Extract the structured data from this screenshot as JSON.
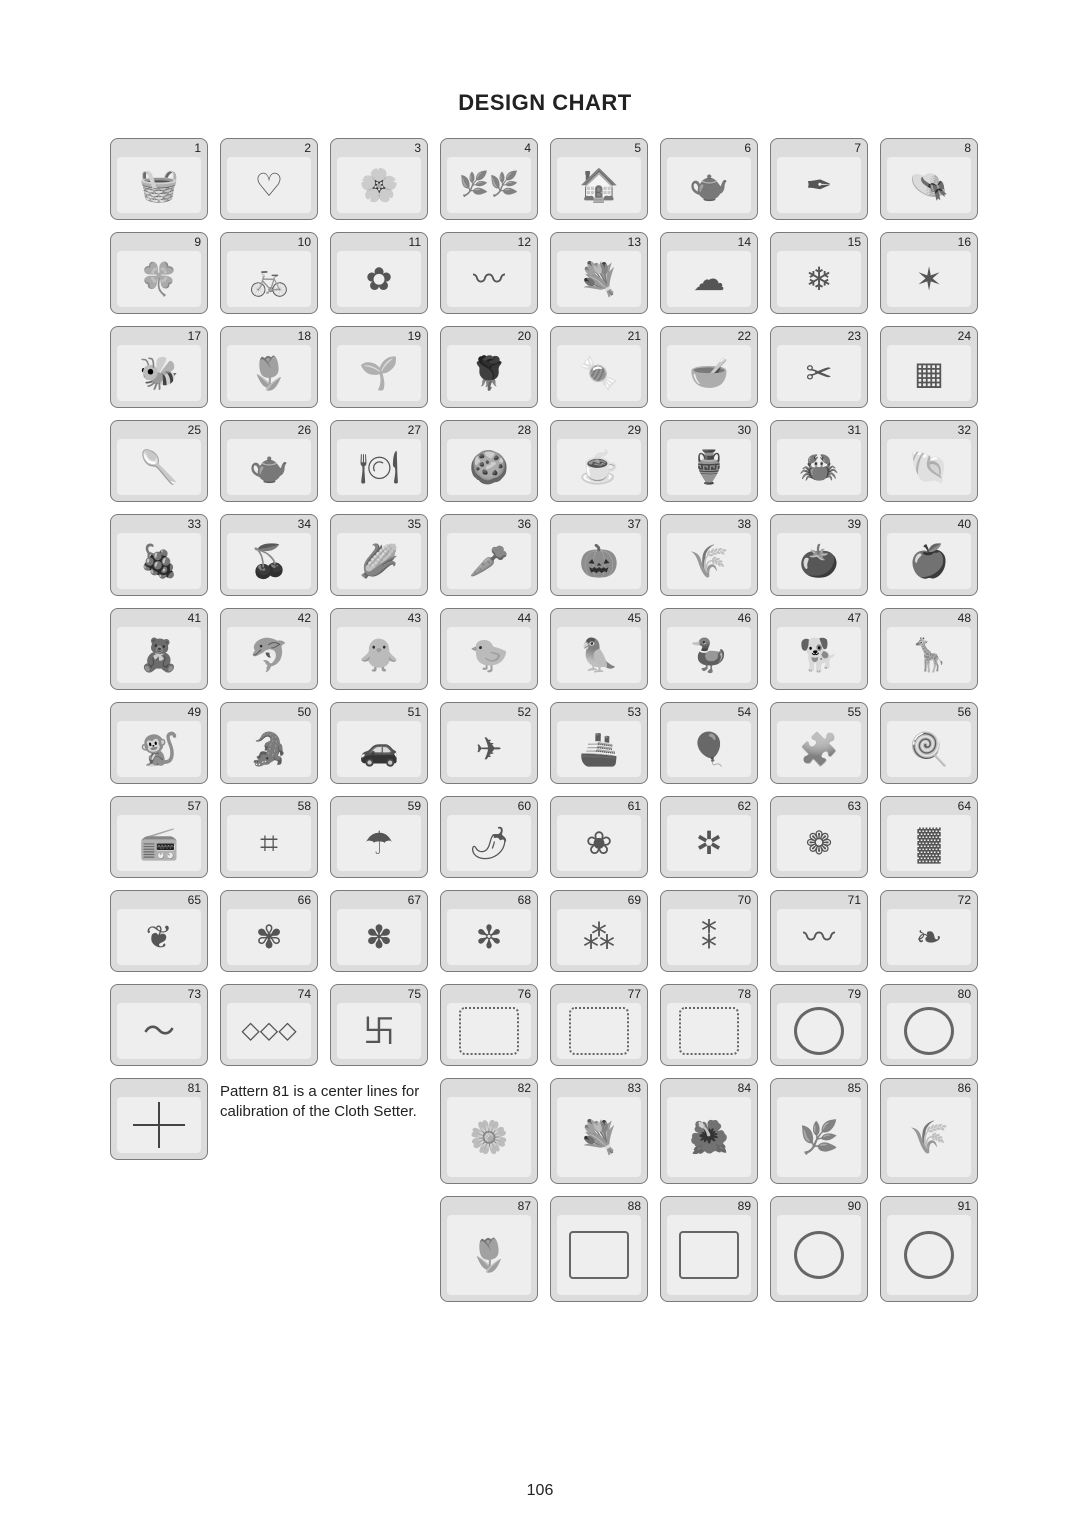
{
  "title": "DESIGN CHART",
  "page_number": "106",
  "note": "Pattern 81 is a center lines for calibration of the Cloth Setter.",
  "cells_small": [
    {
      "n": "1",
      "g": "🧺"
    },
    {
      "n": "2",
      "g": "♡"
    },
    {
      "n": "3",
      "g": "🌸"
    },
    {
      "n": "4",
      "g": "🌿🌿"
    },
    {
      "n": "5",
      "g": "🏠"
    },
    {
      "n": "6",
      "g": "🫖"
    },
    {
      "n": "7",
      "g": "✒"
    },
    {
      "n": "8",
      "g": "👒"
    },
    {
      "n": "9",
      "g": "🍀"
    },
    {
      "n": "10",
      "g": "🚲"
    },
    {
      "n": "11",
      "g": "✿"
    },
    {
      "n": "12",
      "g": "〰"
    },
    {
      "n": "13",
      "g": "💐"
    },
    {
      "n": "14",
      "g": "☁"
    },
    {
      "n": "15",
      "g": "❄"
    },
    {
      "n": "16",
      "g": "✶"
    },
    {
      "n": "17",
      "g": "🐝"
    },
    {
      "n": "18",
      "g": "🌷"
    },
    {
      "n": "19",
      "g": "🌱"
    },
    {
      "n": "20",
      "g": "🌹"
    },
    {
      "n": "21",
      "g": "🍬"
    },
    {
      "n": "22",
      "g": "🥣"
    },
    {
      "n": "23",
      "g": "✂"
    },
    {
      "n": "24",
      "g": "▦"
    },
    {
      "n": "25",
      "g": "🥄"
    },
    {
      "n": "26",
      "g": "🫖"
    },
    {
      "n": "27",
      "g": "🍽"
    },
    {
      "n": "28",
      "g": "🍪"
    },
    {
      "n": "29",
      "g": "☕"
    },
    {
      "n": "30",
      "g": "🏺"
    },
    {
      "n": "31",
      "g": "🦀"
    },
    {
      "n": "32",
      "g": "🐚"
    },
    {
      "n": "33",
      "g": "🍇"
    },
    {
      "n": "34",
      "g": "🍒"
    },
    {
      "n": "35",
      "g": "🌽"
    },
    {
      "n": "36",
      "g": "🥕"
    },
    {
      "n": "37",
      "g": "🎃"
    },
    {
      "n": "38",
      "g": "🌾"
    },
    {
      "n": "39",
      "g": "🍅"
    },
    {
      "n": "40",
      "g": "🍎"
    },
    {
      "n": "41",
      "g": "🧸"
    },
    {
      "n": "42",
      "g": "🐬"
    },
    {
      "n": "43",
      "g": "🐥"
    },
    {
      "n": "44",
      "g": "🐤"
    },
    {
      "n": "45",
      "g": "🦜"
    },
    {
      "n": "46",
      "g": "🦆"
    },
    {
      "n": "47",
      "g": "🐕"
    },
    {
      "n": "48",
      "g": "🦒"
    },
    {
      "n": "49",
      "g": "🐒"
    },
    {
      "n": "50",
      "g": "🐊"
    },
    {
      "n": "51",
      "g": "🚗"
    },
    {
      "n": "52",
      "g": "✈"
    },
    {
      "n": "53",
      "g": "🚢"
    },
    {
      "n": "54",
      "g": "🎈"
    },
    {
      "n": "55",
      "g": "🧩"
    },
    {
      "n": "56",
      "g": "🍭"
    },
    {
      "n": "57",
      "g": "📻"
    },
    {
      "n": "58",
      "g": "⌗"
    },
    {
      "n": "59",
      "g": "☂"
    },
    {
      "n": "60",
      "g": "🌶"
    },
    {
      "n": "61",
      "g": "❀"
    },
    {
      "n": "62",
      "g": "✲"
    },
    {
      "n": "63",
      "g": "❁"
    },
    {
      "n": "64",
      "g": "▓"
    },
    {
      "n": "65",
      "g": "❦"
    },
    {
      "n": "66",
      "g": "✾"
    },
    {
      "n": "67",
      "g": "✽"
    },
    {
      "n": "68",
      "g": "✼"
    },
    {
      "n": "69",
      "g": "⁂"
    },
    {
      "n": "70",
      "g": "⁑"
    },
    {
      "n": "71",
      "g": "〰"
    },
    {
      "n": "72",
      "g": "❧"
    },
    {
      "n": "73",
      "g": "〜"
    },
    {
      "n": "74",
      "g": "◇◇◇"
    },
    {
      "n": "75",
      "g": "卐"
    },
    {
      "n": "76",
      "g": "frame"
    },
    {
      "n": "77",
      "g": "frame"
    },
    {
      "n": "78",
      "g": "frame"
    },
    {
      "n": "79",
      "g": "oval"
    },
    {
      "n": "80",
      "g": "oval"
    },
    {
      "n": "81",
      "g": "cross"
    }
  ],
  "cells_tall_row1": [
    {
      "n": "82",
      "g": "🌼"
    },
    {
      "n": "83",
      "g": "💐"
    },
    {
      "n": "84",
      "g": "🌺"
    },
    {
      "n": "85",
      "g": "🌿"
    },
    {
      "n": "86",
      "g": "🌾"
    }
  ],
  "cells_tall_row2": [
    {
      "n": "87",
      "g": "🌷"
    },
    {
      "n": "88",
      "g": "rect"
    },
    {
      "n": "89",
      "g": "rect"
    },
    {
      "n": "90",
      "g": "oval"
    },
    {
      "n": "91",
      "g": "oval"
    }
  ]
}
